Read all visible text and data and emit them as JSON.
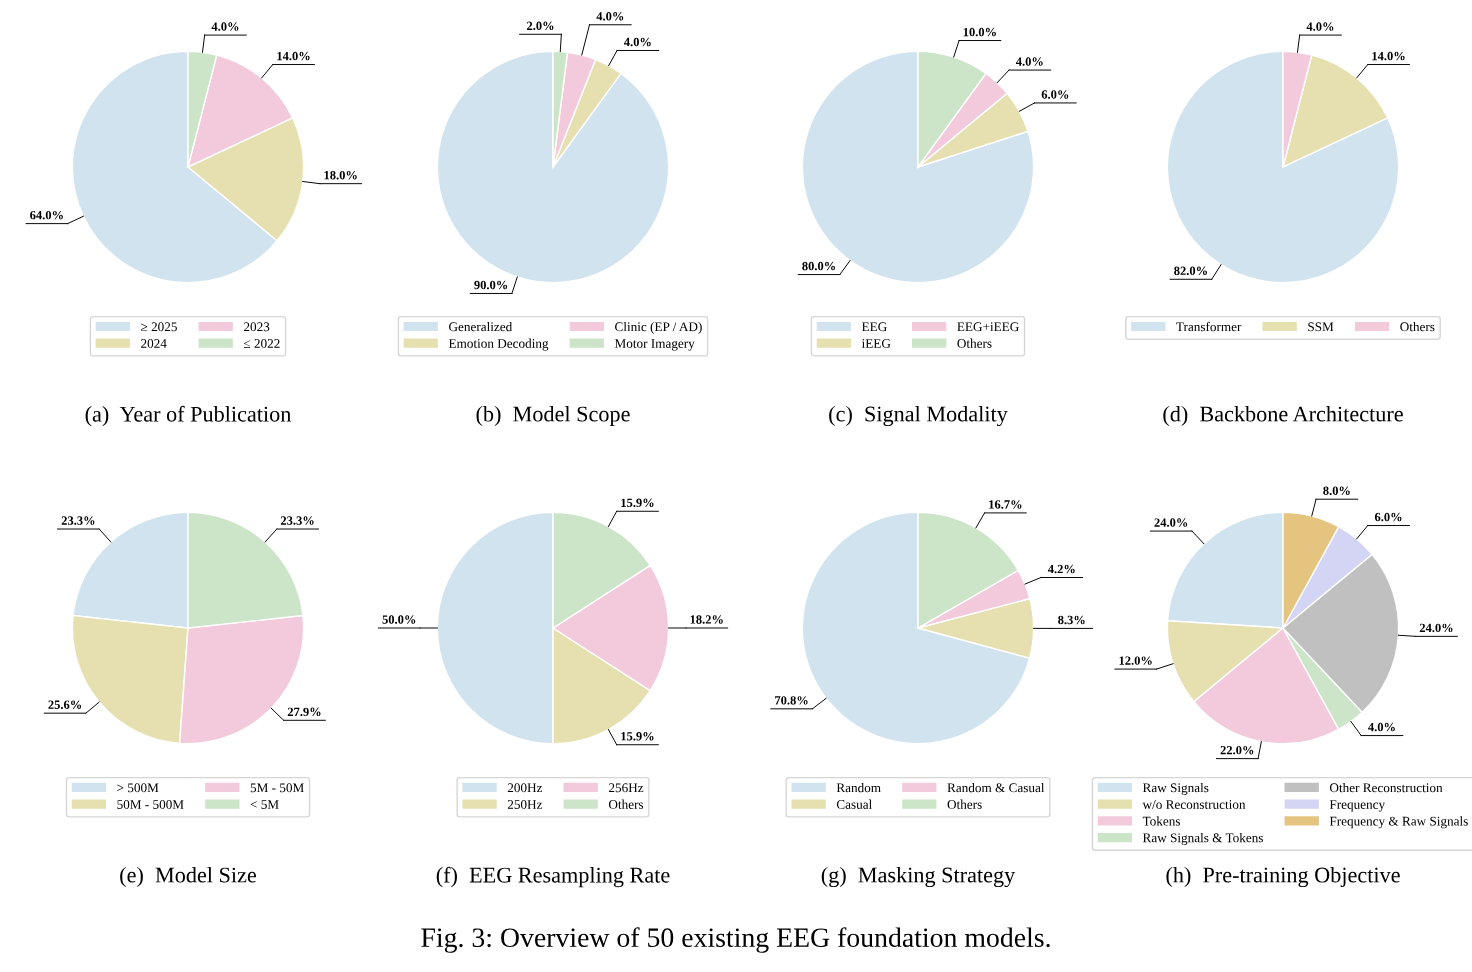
{
  "chart_data": [
    {
      "type": "pie",
      "title": "(a)  Year of Publication",
      "categories": [
        "≥ 2025",
        "2024",
        "2023",
        "≤ 2022"
      ],
      "values": [
        64,
        18,
        14,
        4
      ],
      "value_labels": [
        "64.0%",
        "18.0%",
        "14.0%",
        "4.0%"
      ],
      "colors": [
        "#d0e3ee",
        "#e6e0b0",
        "#f2cadc",
        "#cce5c8"
      ],
      "legend": "bottom",
      "annotations": [
        "Fig. 3: Overview of 50 existing EEG foundation models."
      ]
    },
    {
      "type": "pie",
      "title": "(b)  Model Scope",
      "categories": [
        "Generalized",
        "Emotion Decoding",
        "Clinic (EP / AD)",
        "Motor Imagery"
      ],
      "values": [
        90,
        4,
        4,
        2
      ],
      "value_labels": [
        "90.0%",
        "4.0%",
        "4.0%",
        "2.0%"
      ],
      "colors": [
        "#d0e3ee",
        "#e6e0b0",
        "#f2cadc",
        "#cce5c8"
      ],
      "legend": "bottom"
    },
    {
      "type": "pie",
      "title": "(c)  Signal Modality",
      "categories": [
        "EEG",
        "iEEG",
        "EEG+iEEG",
        "Others"
      ],
      "values": [
        80,
        6,
        4,
        10
      ],
      "value_labels": [
        "80.0%",
        "6.0%",
        "4.0%",
        "10.0%"
      ],
      "colors": [
        "#d0e3ee",
        "#e6e0b0",
        "#f2cadc",
        "#cce5c8"
      ],
      "legend": "bottom"
    },
    {
      "type": "pie",
      "title": "(d)  Backbone Architecture",
      "categories": [
        "Transformer",
        "SSM",
        "Others"
      ],
      "values": [
        82,
        14,
        4
      ],
      "value_labels": [
        "82.0%",
        "14.0%",
        "4.0%"
      ],
      "colors": [
        "#d0e3ee",
        "#e6e0b0",
        "#f2cadc"
      ],
      "legend": "bottom"
    },
    {
      "type": "pie",
      "title": "(e)  Model Size",
      "categories": [
        "> 500M",
        "50M - 500M",
        "5M - 50M",
        "< 5M"
      ],
      "values": [
        23.3,
        25.6,
        27.9,
        23.3
      ],
      "value_labels": [
        "23.3%",
        "25.6%",
        "27.9%",
        "23.3%"
      ],
      "colors": [
        "#d0e3ee",
        "#e6e0b0",
        "#f2cadc",
        "#cce5c8"
      ],
      "legend": "bottom"
    },
    {
      "type": "pie",
      "title": "(f)  EEG Resampling Rate",
      "categories": [
        "200Hz",
        "250Hz",
        "256Hz",
        "Others"
      ],
      "values": [
        50,
        15.9,
        18.2,
        15.9
      ],
      "value_labels": [
        "50.0%",
        "15.9%",
        "18.2%",
        "15.9%"
      ],
      "colors": [
        "#d0e3ee",
        "#e6e0b0",
        "#f2cadc",
        "#cce5c8"
      ],
      "legend": "bottom"
    },
    {
      "type": "pie",
      "title": "(g)  Masking Strategy",
      "categories": [
        "Random",
        "Casual",
        "Random & Casual",
        "Others"
      ],
      "values": [
        70.8,
        8.3,
        4.2,
        16.7
      ],
      "value_labels": [
        "70.8%",
        "8.3%",
        "4.2%",
        "16.7%"
      ],
      "colors": [
        "#d0e3ee",
        "#e6e0b0",
        "#f2cadc",
        "#cce5c8"
      ],
      "legend": "bottom"
    },
    {
      "type": "pie",
      "title": "(h)  Pre-training Objective",
      "categories": [
        "Raw Signals",
        "w/o Reconstruction",
        "Tokens",
        "Raw Signals & Tokens",
        "Other Reconstruction",
        "Frequency",
        "Frequency & Raw Signals"
      ],
      "values": [
        24,
        12,
        22,
        4,
        24,
        6,
        8
      ],
      "value_labels": [
        "24.0%",
        "12.0%",
        "22.0%",
        "4.0%",
        "24.0%",
        "6.0%",
        "8.0%"
      ],
      "colors": [
        "#d0e3ee",
        "#e6e0b0",
        "#f2cadc",
        "#cce5c8",
        "#c0c0c0",
        "#d4d4f5",
        "#e4c47f"
      ],
      "legend": "bottom"
    }
  ]
}
